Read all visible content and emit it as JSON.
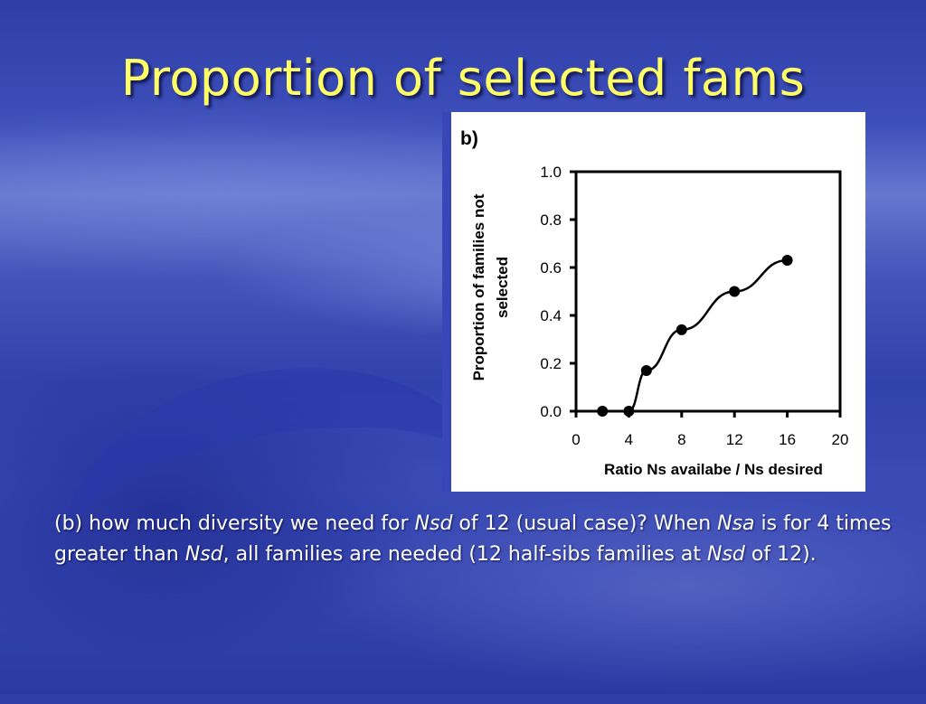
{
  "slide": {
    "title": "Proportion of selected fams",
    "caption": {
      "p1": "(b) how much diversity we need for ",
      "i1": "Nsd",
      "p2": " of 12 (usual case)? When ",
      "i2": "Nsa",
      "p3": " is for 4 times greater than ",
      "i3": "Nsd",
      "p4": ", all families are needed (12 half-sibs families at ",
      "i4": "Nsd",
      "p5": " of 12)."
    }
  },
  "colors": {
    "title": "#ffff66",
    "panel_stripe": "#3946b8"
  },
  "chart_data": {
    "type": "line",
    "panel_label": "b)",
    "xlabel": "Ratio Ns availabe / Ns desired",
    "ylabel": [
      "Proportion of families not",
      "selected"
    ],
    "xlim": [
      0,
      20
    ],
    "ylim": [
      0,
      1.0
    ],
    "x_ticks": [
      "0",
      "4",
      "8",
      "12",
      "16",
      "20"
    ],
    "y_ticks": [
      "0.0",
      "0.2",
      "0.4",
      "0.6",
      "0.8",
      "1.0"
    ],
    "grid": false,
    "series": [
      {
        "x": [
          2,
          4,
          5.33,
          8,
          12,
          16
        ],
        "y": [
          0.0,
          0.0,
          0.17,
          0.34,
          0.5,
          0.63
        ]
      }
    ]
  }
}
